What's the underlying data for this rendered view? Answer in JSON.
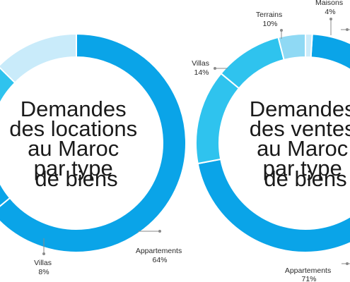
{
  "colors": {
    "dark": "#0aa4e8",
    "mid": "#2fc3ee",
    "light": "#8fd9f4",
    "pale": "#c9ebfa",
    "leader": "#8a8a8a"
  },
  "chart_data": [
    {
      "type": "pie",
      "variant": "donut",
      "title_lines": [
        "Demandes",
        "des locations",
        "au Maroc",
        "par type",
        "de biens"
      ],
      "slices": [
        {
          "label": "Appartements",
          "percent_text": "64%",
          "value": 64
        },
        {
          "label": "Villas",
          "percent_text": "8%",
          "value": 8
        }
      ],
      "unlabeled_visible_slice_colors": [
        "mid",
        "pale"
      ]
    },
    {
      "type": "pie",
      "variant": "donut",
      "title_lines": [
        "Demandes",
        "des ventes",
        "au Maroc",
        "par type",
        "de biens"
      ],
      "slices": [
        {
          "label": "Appartements",
          "percent_text": "71%",
          "value": 71
        },
        {
          "label": "Villas",
          "percent_text": "14%",
          "value": 14
        },
        {
          "label": "Terrains",
          "percent_text": "10%",
          "value": 10
        },
        {
          "label": "Maisons",
          "percent_text": "4%",
          "value": 4
        }
      ]
    }
  ]
}
